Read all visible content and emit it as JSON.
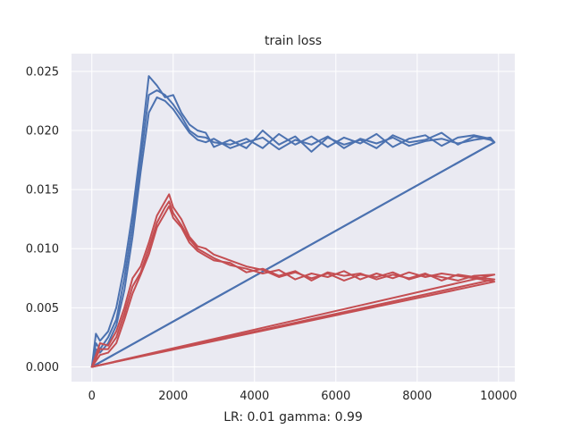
{
  "chart_data": {
    "type": "line",
    "title": "train loss",
    "xlabel": "LR: 0.01 gamma: 0.99",
    "ylabel": "",
    "xlim": [
      -500,
      10400
    ],
    "ylim": [
      -0.00125,
      0.0265
    ],
    "xticks": [
      0,
      2000,
      4000,
      6000,
      8000,
      10000
    ],
    "xtick_labels": [
      "0",
      "2000",
      "4000",
      "6000",
      "8000",
      "10000"
    ],
    "yticks": [
      0.0,
      0.005,
      0.01,
      0.015,
      0.02,
      0.025
    ],
    "ytick_labels": [
      "0.000",
      "0.005",
      "0.010",
      "0.015",
      "0.020",
      "0.025"
    ],
    "grid": true,
    "background": "#eaeaf2",
    "series": [
      {
        "color": "#4c72b0",
        "x": [
          0,
          100,
          200,
          400,
          600,
          800,
          1000,
          1200,
          1400,
          1600,
          1800,
          2000,
          2200,
          2400,
          2600,
          2800,
          3000,
          3400,
          3800,
          4200,
          4600,
          5000,
          5400,
          5800,
          6200,
          6600,
          7000,
          7400,
          7800,
          8200,
          8600,
          9000,
          9400,
          9800,
          9900,
          0
        ],
        "y": [
          0.0,
          0.0028,
          0.0022,
          0.003,
          0.005,
          0.0085,
          0.013,
          0.0185,
          0.0246,
          0.0238,
          0.0228,
          0.023,
          0.0215,
          0.0205,
          0.02,
          0.0198,
          0.0186,
          0.0192,
          0.0185,
          0.02,
          0.0188,
          0.0195,
          0.0182,
          0.0194,
          0.0188,
          0.0192,
          0.0185,
          0.0196,
          0.019,
          0.0192,
          0.0198,
          0.0188,
          0.0195,
          0.0192,
          0.019,
          0.0
        ]
      },
      {
        "color": "#4c72b0",
        "x": [
          0,
          100,
          200,
          400,
          600,
          800,
          1000,
          1200,
          1400,
          1600,
          1800,
          2000,
          2200,
          2400,
          2600,
          2800,
          3000,
          3400,
          3800,
          4200,
          4600,
          5000,
          5400,
          5800,
          6200,
          6600,
          7000,
          7400,
          7800,
          8200,
          8600,
          9000,
          9400,
          9800,
          9900,
          0
        ],
        "y": [
          0.0,
          0.002,
          0.0015,
          0.0025,
          0.004,
          0.0075,
          0.012,
          0.0175,
          0.023,
          0.0234,
          0.023,
          0.0222,
          0.0212,
          0.02,
          0.0195,
          0.0194,
          0.019,
          0.0188,
          0.0193,
          0.0185,
          0.0197,
          0.0188,
          0.0195,
          0.0186,
          0.0194,
          0.0189,
          0.0197,
          0.0186,
          0.0193,
          0.0196,
          0.0187,
          0.0194,
          0.0196,
          0.0193,
          0.019,
          0.0
        ]
      },
      {
        "color": "#4c72b0",
        "x": [
          0,
          100,
          200,
          400,
          600,
          800,
          1000,
          1200,
          1400,
          1600,
          1800,
          2000,
          2200,
          2400,
          2600,
          2800,
          3000,
          3400,
          3800,
          4200,
          4600,
          5000,
          5400,
          5800,
          6200,
          6600,
          7000,
          7400,
          7800,
          8200,
          8600,
          9000,
          9400,
          9800,
          9900,
          0
        ],
        "y": [
          0.0,
          0.0015,
          0.0012,
          0.002,
          0.0035,
          0.0065,
          0.011,
          0.0165,
          0.0215,
          0.0228,
          0.0225,
          0.0218,
          0.0208,
          0.0198,
          0.0192,
          0.019,
          0.0193,
          0.0185,
          0.019,
          0.0194,
          0.0184,
          0.0192,
          0.0188,
          0.0195,
          0.0185,
          0.0193,
          0.0189,
          0.0194,
          0.0187,
          0.0191,
          0.0193,
          0.0189,
          0.0192,
          0.0194,
          0.019,
          0.0
        ]
      },
      {
        "color": "#c44e52",
        "x": [
          0,
          200,
          400,
          600,
          800,
          1000,
          1200,
          1400,
          1600,
          1800,
          1900,
          2000,
          2200,
          2400,
          2600,
          2800,
          3000,
          3400,
          3800,
          4200,
          4600,
          5000,
          5400,
          5800,
          6200,
          6600,
          7000,
          7400,
          7800,
          8200,
          8600,
          9000,
          9400,
          9900,
          0
        ],
        "y": [
          0.0,
          0.002,
          0.0018,
          0.003,
          0.005,
          0.0075,
          0.0085,
          0.0105,
          0.0128,
          0.014,
          0.0146,
          0.0135,
          0.0125,
          0.011,
          0.0102,
          0.01,
          0.0095,
          0.009,
          0.0085,
          0.0082,
          0.0076,
          0.008,
          0.0075,
          0.0079,
          0.0073,
          0.0078,
          0.0076,
          0.008,
          0.0074,
          0.0078,
          0.0076,
          0.0073,
          0.0077,
          0.0078,
          0.0
        ]
      },
      {
        "color": "#c44e52",
        "x": [
          0,
          200,
          400,
          600,
          800,
          1000,
          1200,
          1400,
          1600,
          1800,
          1900,
          2000,
          2200,
          2400,
          2600,
          2800,
          3000,
          3400,
          3800,
          4200,
          4600,
          5000,
          5400,
          5800,
          6200,
          6600,
          7000,
          7400,
          7800,
          8200,
          8600,
          9000,
          9400,
          9900,
          0
        ],
        "y": [
          0.0,
          0.0015,
          0.0015,
          0.0025,
          0.0045,
          0.0068,
          0.008,
          0.01,
          0.0122,
          0.0135,
          0.014,
          0.013,
          0.012,
          0.0108,
          0.01,
          0.0096,
          0.0092,
          0.0086,
          0.0083,
          0.0079,
          0.0082,
          0.0074,
          0.0079,
          0.0076,
          0.0081,
          0.0074,
          0.0079,
          0.0075,
          0.008,
          0.0076,
          0.0079,
          0.0077,
          0.0075,
          0.0072,
          0.0
        ]
      },
      {
        "color": "#c44e52",
        "x": [
          0,
          200,
          400,
          600,
          800,
          1000,
          1200,
          1400,
          1600,
          1800,
          1900,
          2000,
          2200,
          2400,
          2600,
          2800,
          3000,
          3400,
          3800,
          4200,
          4600,
          5000,
          5400,
          5800,
          6200,
          6600,
          7000,
          7400,
          7800,
          8200,
          8600,
          9000,
          9400,
          9900,
          0
        ],
        "y": [
          0.0,
          0.001,
          0.0012,
          0.002,
          0.004,
          0.0062,
          0.0078,
          0.0095,
          0.0118,
          0.013,
          0.0136,
          0.0126,
          0.0118,
          0.0105,
          0.0098,
          0.0094,
          0.009,
          0.0088,
          0.008,
          0.0083,
          0.0077,
          0.0081,
          0.0073,
          0.008,
          0.0077,
          0.0079,
          0.0074,
          0.0078,
          0.0075,
          0.0079,
          0.0073,
          0.0078,
          0.0076,
          0.0074,
          0.0
        ]
      }
    ]
  }
}
